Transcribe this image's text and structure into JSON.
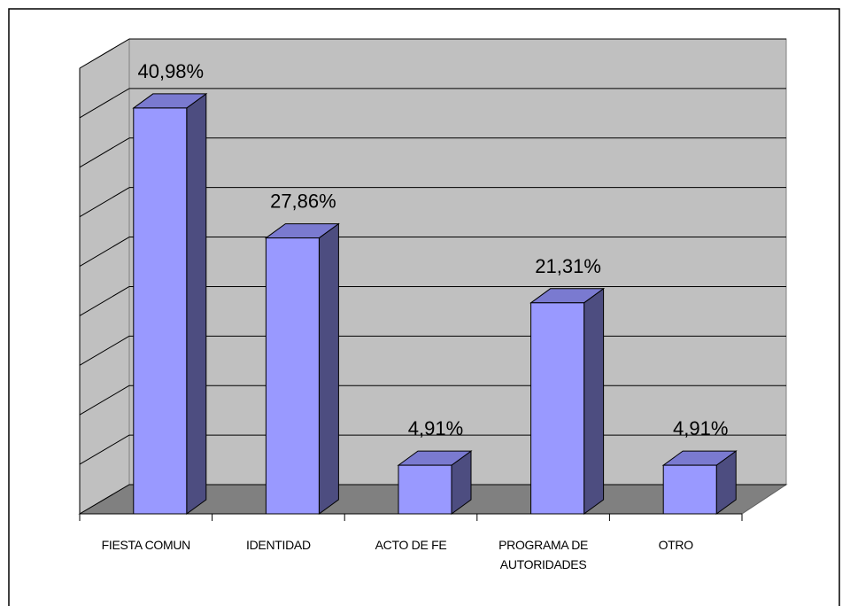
{
  "chart_data": {
    "type": "bar3d",
    "categories": [
      "FIESTA COMUN",
      "IDENTIDAD",
      "ACTO DE FE",
      "PROGRAMA DE AUTORIDADES",
      "OTRO"
    ],
    "values": [
      40.98,
      27.86,
      4.91,
      21.31,
      4.91
    ],
    "value_labels": [
      "40,98%",
      "27,86%",
      "4,91%",
      "21,31%",
      "4,91%"
    ],
    "color": "#9999ff",
    "ylim": [
      0,
      45
    ],
    "yticks": [
      0,
      5,
      10,
      15,
      20,
      25,
      30,
      35,
      40,
      45
    ],
    "grid": true
  }
}
